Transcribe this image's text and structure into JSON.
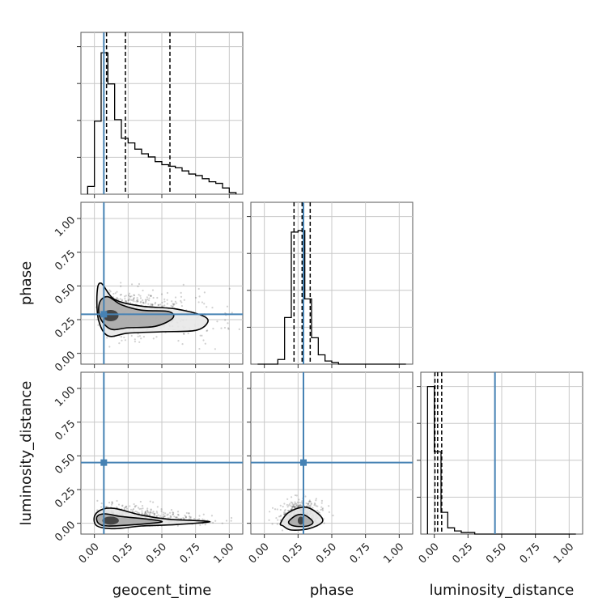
{
  "chart_data": {
    "type": "corner",
    "parameters": [
      "geocent_time",
      "phase",
      "luminosity_distance"
    ],
    "truths": {
      "geocent_time": 0.07,
      "phase": 0.29,
      "luminosity_distance": 0.45
    },
    "quantiles": {
      "geocent_time": [
        0.09,
        0.23,
        0.56
      ],
      "phase": [
        0.22,
        0.28,
        0.34
      ],
      "luminosity_distance": [
        0.005,
        0.025,
        0.055
      ]
    },
    "ticks": [
      0.0,
      0.25,
      0.5,
      0.75,
      1.0
    ],
    "tick_labels": [
      "0.00",
      "0.25",
      "0.50",
      "0.75",
      "1.00"
    ],
    "histograms": {
      "geocent_time": {
        "edges": [
          -0.05,
          0.0,
          0.05,
          0.1,
          0.15,
          0.2,
          0.25,
          0.3,
          0.35,
          0.4,
          0.45,
          0.5,
          0.55,
          0.6,
          0.65,
          0.7,
          0.75,
          0.8,
          0.85,
          0.9,
          0.95,
          1.0,
          1.05
        ],
        "counts": [
          0.05,
          0.47,
          0.91,
          0.71,
          0.48,
          0.36,
          0.33,
          0.29,
          0.26,
          0.24,
          0.21,
          0.19,
          0.18,
          0.17,
          0.15,
          0.13,
          0.12,
          0.1,
          0.08,
          0.07,
          0.04,
          0.01
        ]
      },
      "phase": {
        "edges": [
          -0.05,
          0.0,
          0.05,
          0.1,
          0.15,
          0.2,
          0.25,
          0.3,
          0.35,
          0.4,
          0.45,
          0.5,
          0.55,
          0.6,
          0.65,
          0.7,
          0.75,
          0.8,
          0.85,
          0.9,
          0.95,
          1.0,
          1.05
        ],
        "counts": [
          0,
          0,
          0,
          0.03,
          0.3,
          0.85,
          0.86,
          0.42,
          0.17,
          0.06,
          0.02,
          0.01,
          0,
          0,
          0,
          0,
          0,
          0,
          0,
          0,
          0,
          0
        ]
      },
      "luminosity_distance": {
        "edges": [
          -0.05,
          0.0,
          0.05,
          0.1,
          0.15,
          0.2,
          0.25,
          0.3,
          0.35,
          0.4,
          0.45,
          0.5,
          0.55,
          0.6,
          0.65,
          0.7,
          0.75,
          0.8,
          0.85,
          0.9,
          0.95,
          1.0,
          1.05
        ],
        "counts": [
          0.95,
          0.53,
          0.14,
          0.04,
          0.02,
          0.01,
          0.01,
          0,
          0,
          0,
          0,
          0,
          0,
          0,
          0,
          0,
          0,
          0,
          0,
          0,
          0,
          0
        ]
      }
    },
    "contours": {
      "phase_vs_geocent_time": {
        "center": [
          0.12,
          0.28
        ],
        "levels": [
          {
            "x": [
              0.02,
              0.05,
              0.15,
              0.35,
              0.6,
              0.8,
              0.84,
              0.75,
              0.5,
              0.25,
              0.1,
              0.03
            ],
            "y": [
              0.45,
              0.52,
              0.4,
              0.35,
              0.33,
              0.28,
              0.23,
              0.17,
              0.16,
              0.15,
              0.13,
              0.25
            ]
          },
          {
            "x": [
              0.04,
              0.1,
              0.2,
              0.35,
              0.55,
              0.58,
              0.45,
              0.25,
              0.12,
              0.04
            ],
            "y": [
              0.38,
              0.42,
              0.36,
              0.32,
              0.31,
              0.26,
              0.2,
              0.19,
              0.18,
              0.27
            ]
          }
        ]
      },
      "luminosity_distance_vs_geocent_time": {
        "center": [
          0.12,
          0.02
        ],
        "levels": [
          {
            "x": [
              0.0,
              0.05,
              0.15,
              0.35,
              0.55,
              0.75,
              0.85,
              0.6,
              0.35,
              0.15,
              0.02
            ],
            "y": [
              0.05,
              0.1,
              0.11,
              0.06,
              0.03,
              0.02,
              0.01,
              -0.01,
              -0.02,
              -0.04,
              -0.02
            ]
          },
          {
            "x": [
              0.02,
              0.08,
              0.2,
              0.4,
              0.5,
              0.3,
              0.1,
              0.03
            ],
            "y": [
              0.05,
              0.07,
              0.05,
              0.03,
              0.01,
              -0.01,
              -0.02,
              0.0
            ]
          }
        ]
      },
      "luminosity_distance_vs_phase": {
        "center": [
          0.27,
          0.02
        ],
        "levels": [
          {
            "x": [
              0.12,
              0.18,
              0.3,
              0.4,
              0.43,
              0.33,
              0.2,
              0.14
            ],
            "y": [
              0.0,
              0.08,
              0.12,
              0.07,
              0.01,
              -0.04,
              -0.05,
              -0.02
            ]
          },
          {
            "x": [
              0.18,
              0.24,
              0.3,
              0.36,
              0.32,
              0.22
            ],
            "y": [
              0.01,
              0.06,
              0.06,
              0.01,
              -0.02,
              -0.02
            ]
          }
        ]
      }
    },
    "grid": true
  }
}
